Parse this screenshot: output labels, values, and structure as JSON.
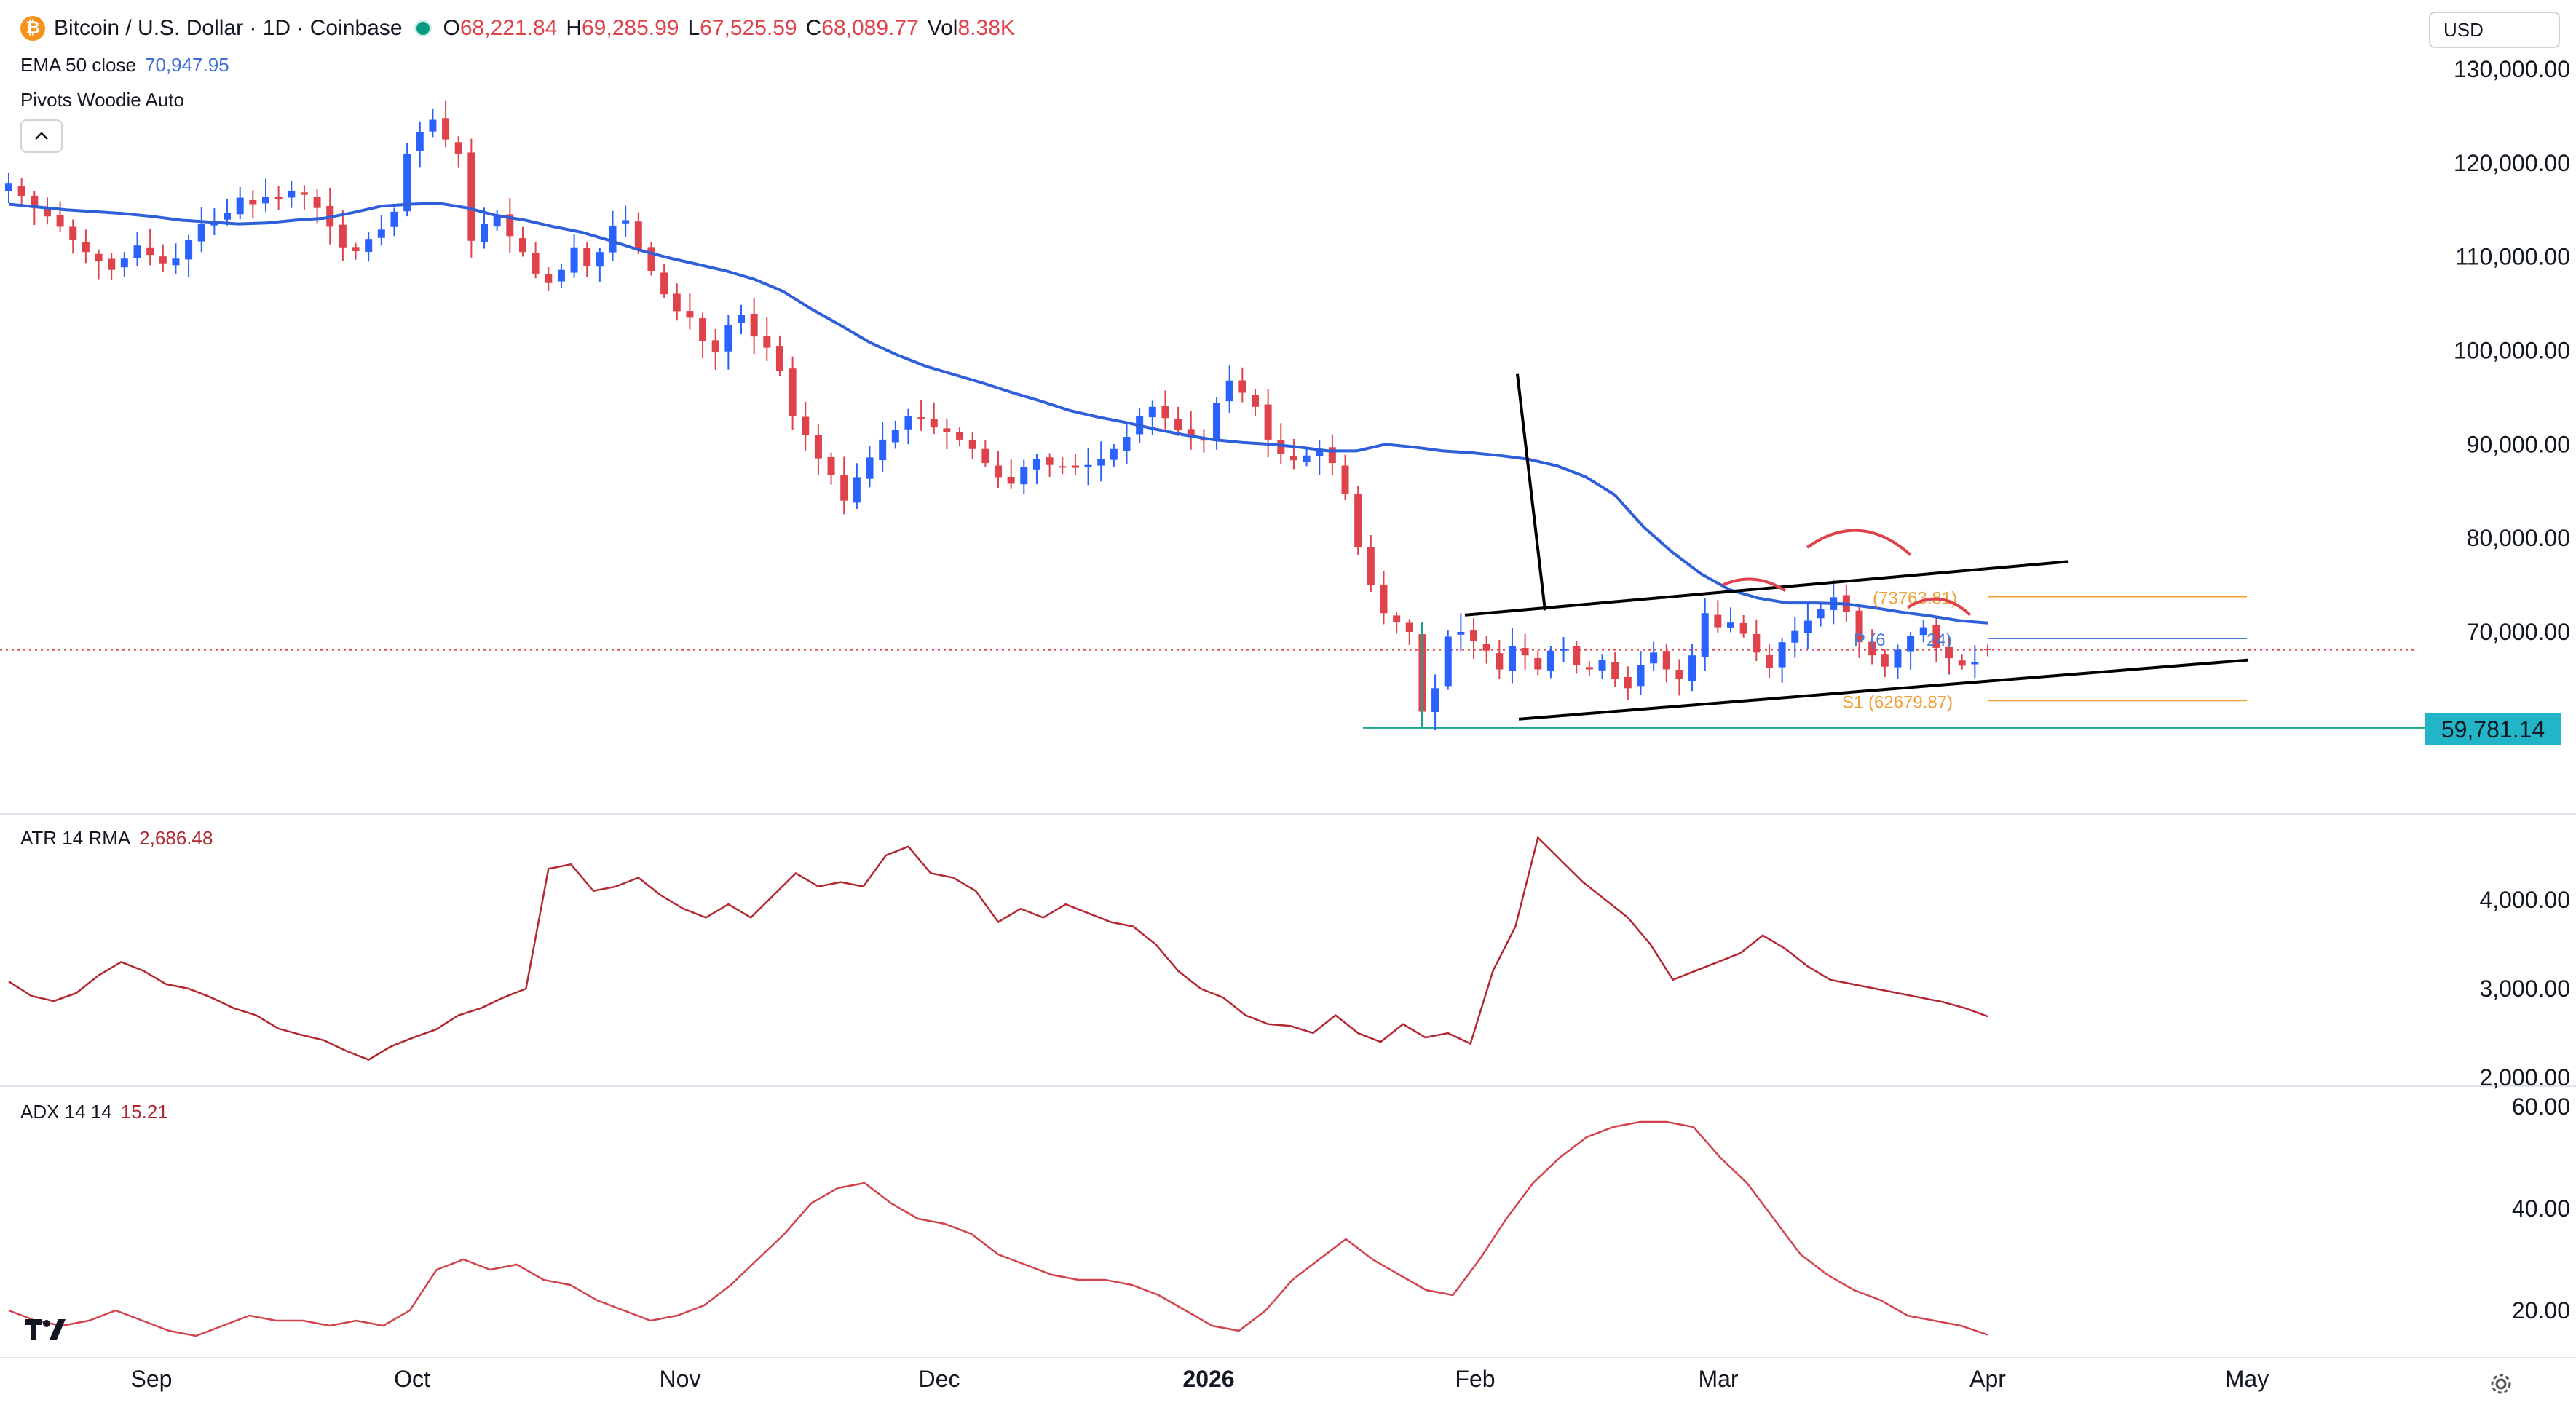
{
  "header": {
    "symbol": "Bitcoin / U.S. Dollar · 1D · Coinbase",
    "open_label": "O",
    "open": "68,221.84",
    "high_label": "H",
    "high": "69,285.99",
    "low_label": "L",
    "low": "67,525.59",
    "close_label": "C",
    "close": "68,089.77",
    "vol_label": "Vol",
    "vol": "8.38K",
    "logo_glyph": "₿"
  },
  "indicators": {
    "ema_name": "EMA 50 close",
    "ema_value": "70,947.95",
    "pivots_name": "Pivots Woodie Auto",
    "atr_name": "ATR 14 RMA",
    "atr_value": "2,686.48",
    "adx_name": "ADX 14 14",
    "adx_value": "15.21"
  },
  "currency": "USD",
  "price_marker": "59,781.14",
  "pivot_labels": {
    "r1": "(73763.81)",
    "p": "P (6",
    "p_tail": "24)",
    "s1": "S1 (62679.87)"
  },
  "time_labels": [
    "Sep",
    "Oct",
    "Nov",
    "Dec",
    "2026",
    "Feb",
    "Mar",
    "Apr",
    "May"
  ],
  "colors": {
    "up": "#2962ff",
    "down": "#e0424b",
    "ema": "#2f5fd9",
    "atr": "#b22833",
    "adx": "#d1444e",
    "pivot": "#f0a035",
    "support": "#18a38c"
  },
  "icons": {
    "collapse": "chevron-up-icon",
    "settings": "gear-icon",
    "logo": "tradingview-logo"
  },
  "chart_data": [
    {
      "type": "candlestick",
      "title": "Bitcoin / U.S. Dollar · 1D · Coinbase",
      "ylim": [
        55000,
        135000
      ],
      "yticks": [
        "130,000.00",
        "120,000.00",
        "110,000.00",
        "100,000.00",
        "90,000.00",
        "80,000.00",
        "70,000.00"
      ],
      "xlabels": [
        "Sep",
        "Oct",
        "Nov",
        "Dec",
        "2026",
        "Feb",
        "Mar",
        "Apr",
        "May"
      ],
      "close_path": [
        117800,
        116500,
        115200,
        114300,
        113200,
        111800,
        110500,
        109500,
        108600,
        109800,
        111200,
        110200,
        109300,
        109800,
        111800,
        113500,
        113800,
        114700,
        116300,
        115600,
        116400,
        116100,
        117000,
        116600,
        115200,
        113200,
        111000,
        110600,
        111900,
        112900,
        114800,
        121000,
        123300,
        124600,
        122500,
        121000,
        111700,
        113500,
        114500,
        112200,
        110500,
        108200,
        107200,
        108600,
        111000,
        109000,
        110500,
        113300,
        113900,
        110800,
        108500,
        106000,
        104200,
        103500,
        101000,
        99800,
        102700,
        103800,
        101500,
        100300,
        97800,
        93000,
        91000,
        88500,
        86700,
        84000,
        86500,
        88600,
        90500,
        91500,
        93000,
        92800,
        91800,
        91300,
        90500,
        89500,
        88000,
        86500,
        85800,
        87600,
        88400,
        87800,
        87600,
        87500,
        87800,
        88400,
        89500,
        90800,
        93000,
        94000,
        92800,
        91500,
        90800,
        90400,
        94400,
        96800,
        95500,
        94000,
        90500,
        89000,
        88300,
        88800,
        89500,
        88000,
        84700,
        79000,
        75000,
        72000,
        71000,
        70000,
        61500,
        64000,
        69500,
        70000,
        69000,
        68000,
        66000,
        68500,
        67500,
        66000,
        68000,
        68200,
        66500,
        66000,
        67000,
        65000,
        64000,
        66500,
        67800,
        66000,
        65000,
        67500,
        72000,
        70500,
        71000,
        69800,
        67800,
        66200,
        68900,
        70100,
        71200,
        72400,
        73700,
        72100,
        68900,
        67500,
        66300,
        68100,
        69600,
        70500,
        68300,
        67200,
        66400,
        66800,
        68089.77
      ],
      "ema50_path": [
        115600,
        115300,
        115000,
        114800,
        114600,
        114300,
        113900,
        113700,
        113500,
        113600,
        113900,
        114100,
        114700,
        115400,
        115600,
        115700,
        115200,
        114400,
        113900,
        113200,
        112600,
        111700,
        110700,
        109900,
        109200,
        108500,
        107600,
        106300,
        104400,
        102700,
        100900,
        99500,
        98300,
        97400,
        96500,
        95500,
        94600,
        93600,
        92900,
        92300,
        91600,
        91000,
        90500,
        90200,
        90000,
        89700,
        89300,
        89300,
        90000,
        89700,
        89300,
        89100,
        88800,
        88400,
        87700,
        86500,
        84600,
        81200,
        78500,
        76200,
        74500,
        73600,
        73100,
        73100,
        73000,
        72600,
        72100,
        71700,
        71200,
        70947.95
      ],
      "pivot_levels": {
        "R1": 73763.81,
        "P": 69300,
        "S1": 62679.87
      },
      "support_level": 59781.14,
      "current_price": 68089.77
    },
    {
      "type": "line",
      "title": "ATR 14 RMA",
      "ylim": [
        2000,
        4800
      ],
      "yticks": [
        "4,000.00",
        "3,000.00",
        "2,000.00"
      ],
      "values": [
        3080,
        2920,
        2860,
        2950,
        3150,
        3300,
        3200,
        3050,
        3000,
        2900,
        2780,
        2700,
        2550,
        2480,
        2420,
        2300,
        2200,
        2350,
        2450,
        2540,
        2700,
        2780,
        2900,
        3000,
        4350,
        4400,
        4100,
        4150,
        4250,
        4050,
        3900,
        3800,
        3950,
        3800,
        4050,
        4300,
        4150,
        4200,
        4150,
        4500,
        4600,
        4300,
        4250,
        4100,
        3750,
        3900,
        3800,
        3950,
        3850,
        3750,
        3700,
        3500,
        3200,
        3000,
        2900,
        2700,
        2600,
        2580,
        2500,
        2700,
        2500,
        2400,
        2600,
        2450,
        2500,
        2380,
        3200,
        3700,
        4700,
        4450,
        4200,
        4000,
        3800,
        3500,
        3100,
        3200,
        3300,
        3400,
        3600,
        3450,
        3250,
        3100,
        3050,
        3000,
        2950,
        2900,
        2850,
        2780,
        2686.48
      ]
    },
    {
      "type": "line",
      "title": "ADX 14 14",
      "ylim": [
        10,
        62
      ],
      "yticks": [
        "60.00",
        "40.00",
        "20.00"
      ],
      "values": [
        20,
        18,
        17,
        18,
        20,
        18,
        16,
        15,
        17,
        19,
        18,
        18,
        17,
        18,
        17,
        20,
        28,
        30,
        28,
        29,
        26,
        25,
        22,
        20,
        18,
        19,
        21,
        25,
        30,
        35,
        41,
        44,
        45,
        41,
        38,
        37,
        35,
        31,
        29,
        27,
        26,
        26,
        25,
        23,
        20,
        17,
        16,
        20,
        26,
        30,
        34,
        30,
        27,
        24,
        23,
        30,
        38,
        45,
        50,
        54,
        56,
        57,
        57,
        56,
        50,
        45,
        38,
        31,
        27,
        24,
        22,
        19,
        18,
        17,
        15.21
      ]
    }
  ]
}
